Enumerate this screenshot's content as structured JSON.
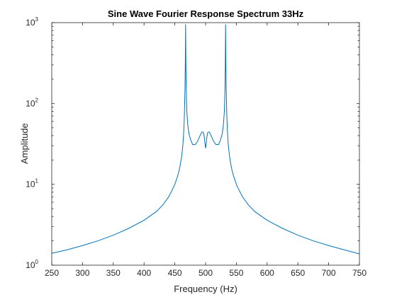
{
  "chart_data": {
    "type": "line",
    "title": "Sine Wave Fourier Response Spectrum 33Hz",
    "xlabel": "Frequency (Hz)",
    "ylabel": "Amplitude",
    "xlim": [
      250,
      750
    ],
    "ylim": [
      1,
      1000
    ],
    "yscale": "log",
    "grid": false,
    "xticks": [
      250,
      300,
      350,
      400,
      450,
      500,
      550,
      600,
      650,
      700,
      750
    ],
    "xtick_labels": [
      "250",
      "300",
      "350",
      "400",
      "450",
      "500",
      "550",
      "600",
      "650",
      "700",
      "750"
    ],
    "yticks": [
      1,
      10,
      100,
      1000
    ],
    "ytick_labels": [
      {
        "base": "10",
        "exp": "0"
      },
      {
        "base": "10",
        "exp": "1"
      },
      {
        "base": "10",
        "exp": "2"
      },
      {
        "base": "10",
        "exp": "3"
      }
    ],
    "series": [
      {
        "color": "#0072bd",
        "points": [
          [
            250,
            1.4
          ],
          [
            275,
            1.55
          ],
          [
            300,
            1.75
          ],
          [
            325,
            2.0
          ],
          [
            350,
            2.35
          ],
          [
            375,
            2.85
          ],
          [
            400,
            3.6
          ],
          [
            420,
            4.6
          ],
          [
            430,
            5.5
          ],
          [
            440,
            7.0
          ],
          [
            445,
            8.3
          ],
          [
            450,
            10
          ],
          [
            455,
            13
          ],
          [
            458,
            16
          ],
          [
            461,
            22
          ],
          [
            463,
            30
          ],
          [
            464.5,
            45
          ],
          [
            465.5,
            70
          ],
          [
            466.5,
            150
          ],
          [
            467,
            300
          ],
          [
            467.5,
            950
          ],
          [
            468,
            300
          ],
          [
            468.5,
            150
          ],
          [
            469.5,
            80
          ],
          [
            471,
            55
          ],
          [
            473,
            42
          ],
          [
            476,
            35
          ],
          [
            479,
            31
          ],
          [
            483,
            31
          ],
          [
            487,
            34
          ],
          [
            491,
            40
          ],
          [
            494,
            44.5
          ],
          [
            496.5,
            44
          ],
          [
            498,
            38
          ],
          [
            499,
            32
          ],
          [
            500,
            28
          ],
          [
            501,
            32
          ],
          [
            502,
            38
          ],
          [
            503.5,
            44
          ],
          [
            506,
            44.5
          ],
          [
            509,
            40
          ],
          [
            513,
            34
          ],
          [
            517,
            31
          ],
          [
            521,
            31
          ],
          [
            524,
            35
          ],
          [
            527,
            42
          ],
          [
            529,
            55
          ],
          [
            530.5,
            80
          ],
          [
            531.5,
            150
          ],
          [
            532,
            300
          ],
          [
            532.5,
            950
          ],
          [
            533,
            300
          ],
          [
            533.5,
            150
          ],
          [
            534.5,
            70
          ],
          [
            535.5,
            45
          ],
          [
            537,
            30
          ],
          [
            539,
            22
          ],
          [
            542,
            16
          ],
          [
            545,
            13
          ],
          [
            550,
            10
          ],
          [
            555,
            8.3
          ],
          [
            560,
            7.0
          ],
          [
            570,
            5.5
          ],
          [
            580,
            4.6
          ],
          [
            600,
            3.6
          ],
          [
            625,
            2.85
          ],
          [
            650,
            2.35
          ],
          [
            675,
            2.0
          ],
          [
            700,
            1.75
          ],
          [
            725,
            1.55
          ],
          [
            750,
            1.38
          ]
        ]
      }
    ]
  }
}
